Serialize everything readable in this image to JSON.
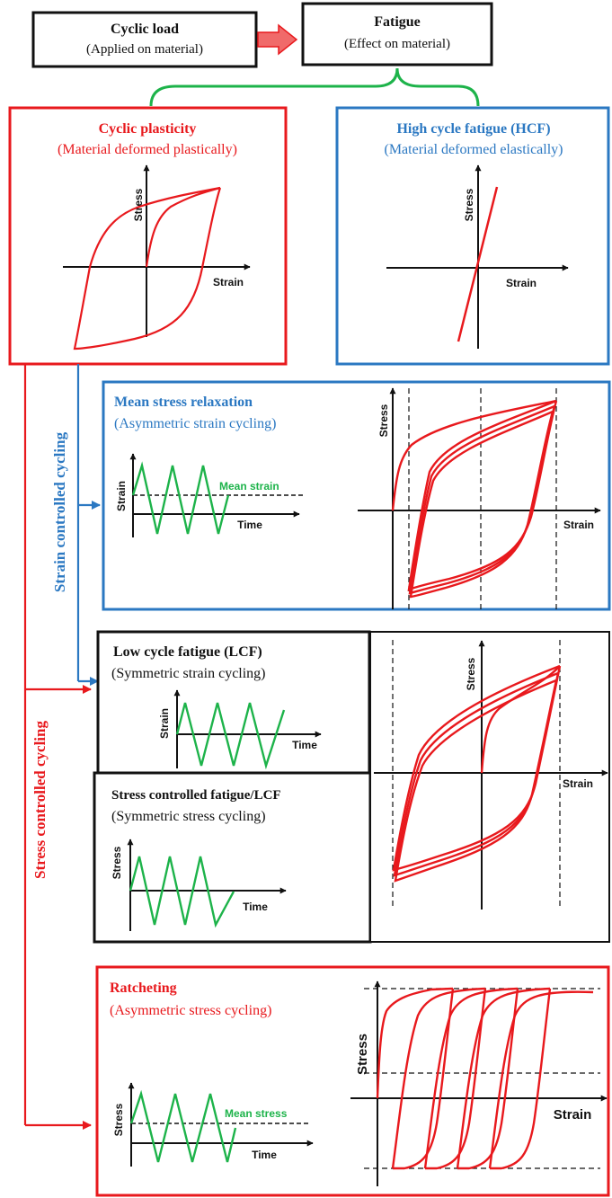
{
  "colors": {
    "red": "#e8191d",
    "blue": "#2b78c2",
    "green": "#1db34a",
    "black": "#111111",
    "arrow_fill": "#f06a6a"
  },
  "top": {
    "cyclic_load": {
      "title": "Cyclic load",
      "subtitle": "(Applied on material)"
    },
    "fatigue": {
      "title": "Fatigue",
      "subtitle": "(Effect on material)"
    }
  },
  "cyclic_plasticity": {
    "title": "Cyclic plasticity",
    "subtitle": "(Material deformed plastically)",
    "ylabel": "Stress",
    "xlabel": "Strain"
  },
  "hcf": {
    "title": "High cycle fatigue (HCF)",
    "subtitle": "(Material deformed elastically)",
    "ylabel": "Stress",
    "xlabel": "Strain"
  },
  "side_labels": {
    "strain_controlled": "Strain controlled cycling",
    "stress_controlled": "Stress controlled cycling"
  },
  "mean_stress_relaxation": {
    "title": "Mean stress relaxation",
    "subtitle": "(Asymmetric strain cycling)",
    "wave_ylabel": "Strain",
    "wave_xlabel": "Time",
    "wave_annotation": "Mean strain",
    "plot_ylabel": "Stress",
    "plot_xlabel": "Strain"
  },
  "lcf": {
    "title": "Low cycle fatigue (LCF)",
    "subtitle": "(Symmetric strain cycling)",
    "wave_ylabel": "Strain",
    "wave_xlabel": "Time"
  },
  "stress_controlled_fatigue": {
    "title": "Stress controlled fatigue/LCF",
    "subtitle": "(Symmetric stress cycling)",
    "wave_ylabel": "Stress",
    "wave_xlabel": "Time"
  },
  "lcf_plot": {
    "ylabel": "Stress",
    "xlabel": "Strain"
  },
  "ratcheting": {
    "title": "Ratcheting",
    "subtitle": "(Asymmetric stress cycling)",
    "wave_ylabel": "Stress",
    "wave_xlabel": "Time",
    "wave_annotation": "Mean stress",
    "plot_ylabel": "Stress",
    "plot_xlabel": "Strain"
  }
}
